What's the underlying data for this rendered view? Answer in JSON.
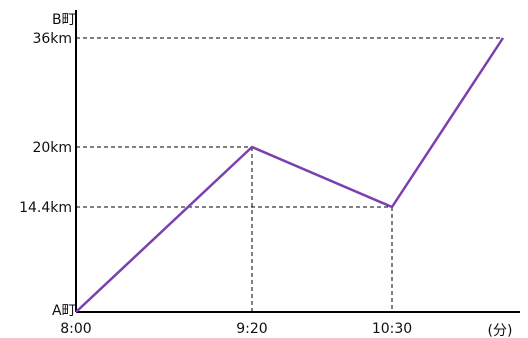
{
  "chart_data": {
    "type": "line",
    "x_axis_label_end": "(分)",
    "y_axis_label_top": "B町",
    "y_axis_label_origin": "A町",
    "x_ticks": [
      "8:00",
      "9:20",
      "10:30"
    ],
    "y_ticks": [
      "36km",
      "20km",
      "14.4km"
    ],
    "series": [
      {
        "color": "#7b3fb0",
        "x": [
          "8:00",
          "9:20",
          "10:30",
          "11:30"
        ],
        "y": [
          0,
          20,
          14.4,
          36
        ]
      }
    ],
    "guides_x": [
      "9:20",
      "10:30"
    ],
    "guides_y": [
      36,
      20,
      14.4
    ],
    "ylim": [
      0,
      36
    ],
    "grid": false,
    "legend": "none"
  }
}
